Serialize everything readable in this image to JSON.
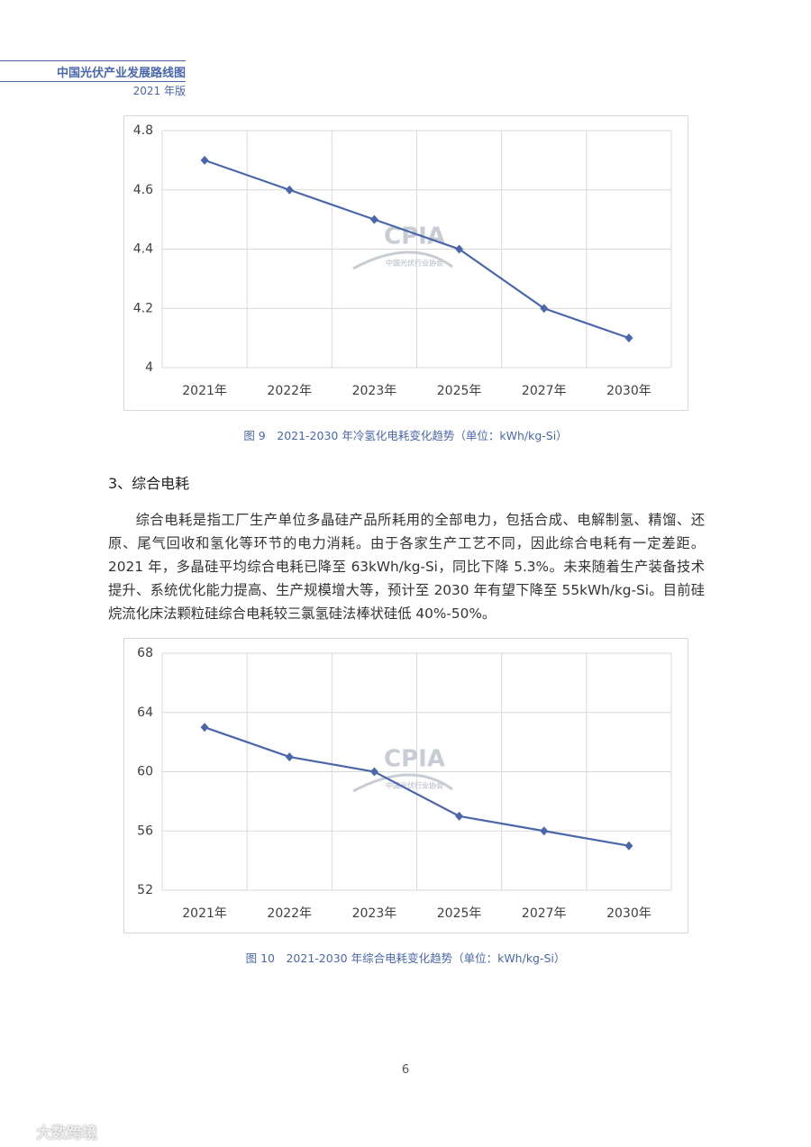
{
  "header": {
    "title": "中国光伏产业发展路线图",
    "edition": "2021 年版"
  },
  "chart_data": [
    {
      "type": "line",
      "categories": [
        "2021年",
        "2022年",
        "2023年",
        "2025年",
        "2027年",
        "2030年"
      ],
      "values": [
        4.7,
        4.6,
        4.5,
        4.4,
        4.2,
        4.1
      ],
      "color": "#4a67ab",
      "ylim": [
        4,
        4.8
      ],
      "yticks": [
        4,
        4.2,
        4.4,
        4.6,
        4.8
      ],
      "grid": true,
      "caption": "图 9　2021-2030 年冷氢化电耗变化趋势（单位：kWh/kg-Si）"
    },
    {
      "type": "line",
      "categories": [
        "2021年",
        "2022年",
        "2023年",
        "2025年",
        "2027年",
        "2030年"
      ],
      "values": [
        63,
        61,
        60,
        57,
        56,
        55
      ],
      "color": "#4a67ab",
      "ylim": [
        52,
        68
      ],
      "yticks": [
        52,
        56,
        60,
        64,
        68
      ],
      "grid": true,
      "caption": "图 10　2021-2030 年综合电耗变化趋势（单位：kWh/kg-Si）"
    }
  ],
  "watermark": {
    "logo": "CPIA",
    "org": "中国光伏行业协会",
    "corner": "大数跨境"
  },
  "section": {
    "heading": "3、综合电耗",
    "paragraph": "综合电耗是指工厂生产单位多晶硅产品所耗用的全部电力，包括合成、电解制氢、精馏、还原、尾气回收和氢化等环节的电力消耗。由于各家生产工艺不同，因此综合电耗有一定差距。2021 年，多晶硅平均综合电耗已降至 63kWh/kg-Si，同比下降 5.3%。未来随着生产装备技术提升、系统优化能力提高、生产规模增大等，预计至 2030 年有望下降至 55kWh/kg-Si。目前硅烷流化床法颗粒硅综合电耗较三氯氢硅法棒状硅低 40%-50%。"
  },
  "page_number": "6"
}
